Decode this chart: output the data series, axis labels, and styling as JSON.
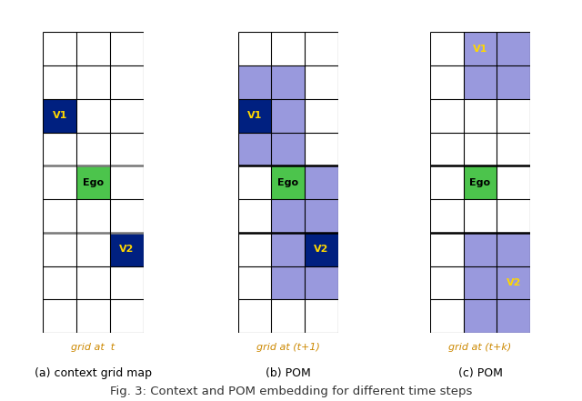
{
  "fig_width": 6.4,
  "fig_height": 4.41,
  "dpi": 100,
  "background_color": "#ffffff",
  "panels": [
    {
      "name": "a",
      "label": "grid at  t",
      "sublabel": "(a) context grid map",
      "colored_cells": [
        {
          "row": 2,
          "col": 0,
          "color": "#002080",
          "text": "V1",
          "text_color": "#FFD700"
        },
        {
          "row": 4,
          "col": 1,
          "color": "#4CC44C",
          "text": "Ego",
          "text_color": "#000000"
        },
        {
          "row": 6,
          "col": 2,
          "color": "#002080",
          "text": "V2",
          "text_color": "#FFD700"
        }
      ],
      "thick_lines_rows": [
        4,
        6
      ],
      "thick_line_color": "#777777",
      "num_cols": 3,
      "num_rows": 9
    },
    {
      "name": "b",
      "label": "grid at (t+1)",
      "sublabel": "(b) POM",
      "colored_cells": [
        {
          "row": 1,
          "col": 0,
          "color": "#9999DD",
          "text": "",
          "text_color": "#FFD700"
        },
        {
          "row": 1,
          "col": 1,
          "color": "#9999DD",
          "text": "",
          "text_color": "#FFD700"
        },
        {
          "row": 2,
          "col": 0,
          "color": "#002080",
          "text": "V1",
          "text_color": "#FFD700"
        },
        {
          "row": 2,
          "col": 1,
          "color": "#9999DD",
          "text": "",
          "text_color": "#FFD700"
        },
        {
          "row": 3,
          "col": 0,
          "color": "#9999DD",
          "text": "",
          "text_color": "#FFD700"
        },
        {
          "row": 3,
          "col": 1,
          "color": "#9999DD",
          "text": "",
          "text_color": "#FFD700"
        },
        {
          "row": 4,
          "col": 1,
          "color": "#4CC44C",
          "text": "Ego",
          "text_color": "#000000"
        },
        {
          "row": 4,
          "col": 2,
          "color": "#9999DD",
          "text": "",
          "text_color": "#FFD700"
        },
        {
          "row": 5,
          "col": 1,
          "color": "#9999DD",
          "text": "",
          "text_color": "#FFD700"
        },
        {
          "row": 5,
          "col": 2,
          "color": "#9999DD",
          "text": "",
          "text_color": "#FFD700"
        },
        {
          "row": 6,
          "col": 1,
          "color": "#9999DD",
          "text": "",
          "text_color": "#FFD700"
        },
        {
          "row": 6,
          "col": 2,
          "color": "#002080",
          "text": "V2",
          "text_color": "#FFD700"
        },
        {
          "row": 7,
          "col": 1,
          "color": "#9999DD",
          "text": "",
          "text_color": "#FFD700"
        },
        {
          "row": 7,
          "col": 2,
          "color": "#9999DD",
          "text": "",
          "text_color": "#FFD700"
        }
      ],
      "thick_lines_rows": [
        4,
        6
      ],
      "thick_line_color": "#000000",
      "num_cols": 3,
      "num_rows": 9
    },
    {
      "name": "c",
      "label": "grid at (t+k)",
      "sublabel": "(c) POM",
      "colored_cells": [
        {
          "row": 0,
          "col": 1,
          "color": "#9999DD",
          "text": "V1",
          "text_color": "#FFD700"
        },
        {
          "row": 0,
          "col": 2,
          "color": "#9999DD",
          "text": "",
          "text_color": "#FFD700"
        },
        {
          "row": 1,
          "col": 1,
          "color": "#9999DD",
          "text": "",
          "text_color": "#FFD700"
        },
        {
          "row": 1,
          "col": 2,
          "color": "#9999DD",
          "text": "",
          "text_color": "#FFD700"
        },
        {
          "row": 4,
          "col": 1,
          "color": "#4CC44C",
          "text": "Ego",
          "text_color": "#000000"
        },
        {
          "row": 6,
          "col": 1,
          "color": "#9999DD",
          "text": "",
          "text_color": "#FFD700"
        },
        {
          "row": 6,
          "col": 2,
          "color": "#9999DD",
          "text": "",
          "text_color": "#FFD700"
        },
        {
          "row": 7,
          "col": 1,
          "color": "#9999DD",
          "text": "",
          "text_color": "#FFD700"
        },
        {
          "row": 7,
          "col": 2,
          "color": "#9999DD",
          "text": "V2",
          "text_color": "#FFD700"
        },
        {
          "row": 8,
          "col": 1,
          "color": "#9999DD",
          "text": "",
          "text_color": "#FFD700"
        },
        {
          "row": 8,
          "col": 2,
          "color": "#9999DD",
          "text": "",
          "text_color": "#FFD700"
        }
      ],
      "thick_lines_rows": [
        4,
        6
      ],
      "thick_line_color": "#000000",
      "num_cols": 3,
      "num_rows": 9
    }
  ],
  "grid_label_color": "#CC8800",
  "sublabel_color": "#000000",
  "fig_caption": "Fig. 3: Context and POM embedding for different time steps"
}
